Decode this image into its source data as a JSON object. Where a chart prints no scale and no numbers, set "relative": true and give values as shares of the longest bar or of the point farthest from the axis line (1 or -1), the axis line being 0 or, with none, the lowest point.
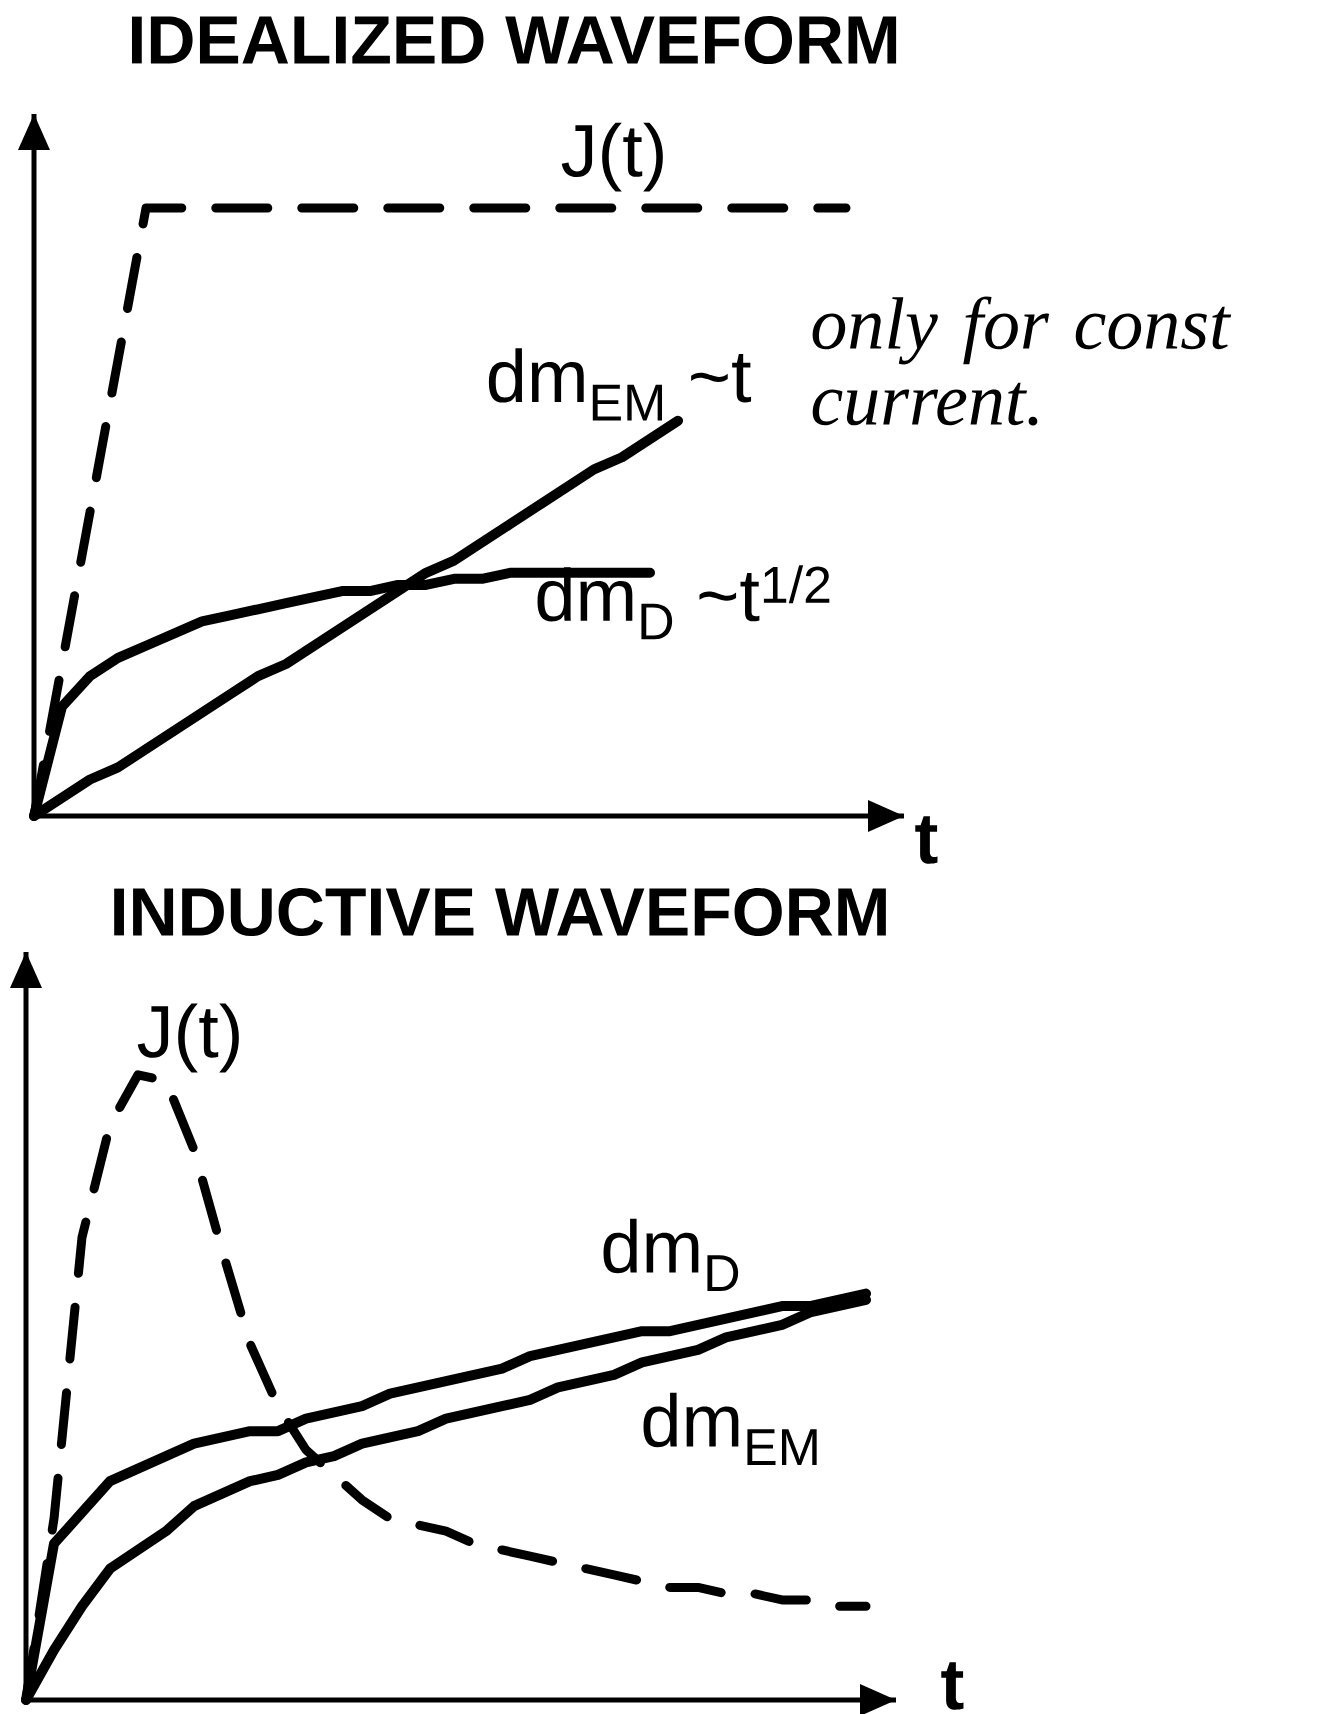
{
  "chart_data": [
    {
      "type": "line",
      "title": "IDEALIZED WAVEFORM",
      "xlabel": "t",
      "relative": true,
      "categories": [
        null,
        null,
        null,
        null,
        null,
        null,
        null,
        null,
        null,
        null,
        null,
        null,
        null,
        null,
        null,
        null,
        null,
        null,
        null,
        null,
        null,
        null,
        null,
        null,
        null,
        null,
        null,
        null,
        null,
        null
      ],
      "series": [
        {
          "name": "J(t)",
          "color": "#000000",
          "line_style": "dashed",
          "values": [
            0,
            0.25,
            0.5,
            0.75,
            1,
            1,
            1,
            1,
            1,
            1,
            1,
            1,
            1,
            1,
            1,
            1,
            1,
            1,
            1,
            1,
            1,
            1,
            1,
            1,
            1,
            1,
            1,
            1,
            1,
            1
          ]
        },
        {
          "name": "dm$_{EM}$ ~t",
          "color": "#000000",
          "line_style": "solid",
          "values": [
            0,
            0.03,
            0.06,
            0.08,
            0.11,
            0.14,
            0.17,
            0.2,
            0.23,
            0.25,
            0.28,
            0.31,
            0.34,
            0.37,
            0.4,
            0.42,
            0.45,
            0.48,
            0.51,
            0.54,
            0.57,
            0.59,
            0.62,
            0.65,
            null,
            null,
            null,
            null,
            null,
            null
          ]
        },
        {
          "name": "dm$_{D}$ ~t$^{1/2}$",
          "color": "#000000",
          "line_style": "solid",
          "values": [
            0,
            0.18,
            0.23,
            0.26,
            0.28,
            0.3,
            0.32,
            0.33,
            0.34,
            0.35,
            0.36,
            0.37,
            0.37,
            0.38,
            0.38,
            0.39,
            0.39,
            0.4,
            0.4,
            0.4,
            0.4,
            0.4,
            0.4,
            null,
            null,
            null,
            null,
            null,
            null,
            null
          ]
        }
      ],
      "annotations": [
        "only for const current."
      ]
    },
    {
      "type": "line",
      "title": "INDUCTIVE WAVEFORM",
      "xlabel": "t",
      "relative": true,
      "categories": [
        null,
        null,
        null,
        null,
        null,
        null,
        null,
        null,
        null,
        null,
        null,
        null,
        null,
        null,
        null,
        null,
        null,
        null,
        null,
        null,
        null,
        null,
        null,
        null,
        null,
        null,
        null,
        null,
        null,
        null,
        null
      ],
      "series": [
        {
          "name": "J(t)",
          "color": "#000000",
          "line_style": "dashed",
          "values": [
            0,
            0.29,
            0.74,
            0.92,
            1,
            0.99,
            0.88,
            0.72,
            0.57,
            0.47,
            0.4,
            0.36,
            0.32,
            0.29,
            0.28,
            0.27,
            0.25,
            0.24,
            0.23,
            0.22,
            0.21,
            0.2,
            0.19,
            0.18,
            0.18,
            0.17,
            0.17,
            0.16,
            0.16,
            0.15,
            0.15
          ]
        },
        {
          "name": "dm$_{D}$",
          "color": "#000000",
          "line_style": "solid",
          "values": [
            0,
            0.25,
            0.3,
            0.35,
            0.37,
            0.39,
            0.41,
            0.42,
            0.43,
            0.43,
            0.45,
            0.46,
            0.47,
            0.49,
            0.5,
            0.51,
            0.52,
            0.53,
            0.55,
            0.56,
            0.57,
            0.58,
            0.59,
            0.59,
            0.6,
            0.61,
            0.62,
            0.63,
            0.63,
            0.64,
            0.65
          ]
        },
        {
          "name": "dm$_{EM}$",
          "color": "#000000",
          "line_style": "solid",
          "values": [
            0,
            0.08,
            0.15,
            0.21,
            0.24,
            0.27,
            0.31,
            0.33,
            0.35,
            0.36,
            0.38,
            0.39,
            0.41,
            0.42,
            0.43,
            0.45,
            0.46,
            0.47,
            0.48,
            0.5,
            0.51,
            0.52,
            0.54,
            0.55,
            0.56,
            0.58,
            0.59,
            0.6,
            0.62,
            0.63,
            0.64
          ]
        }
      ]
    }
  ]
}
